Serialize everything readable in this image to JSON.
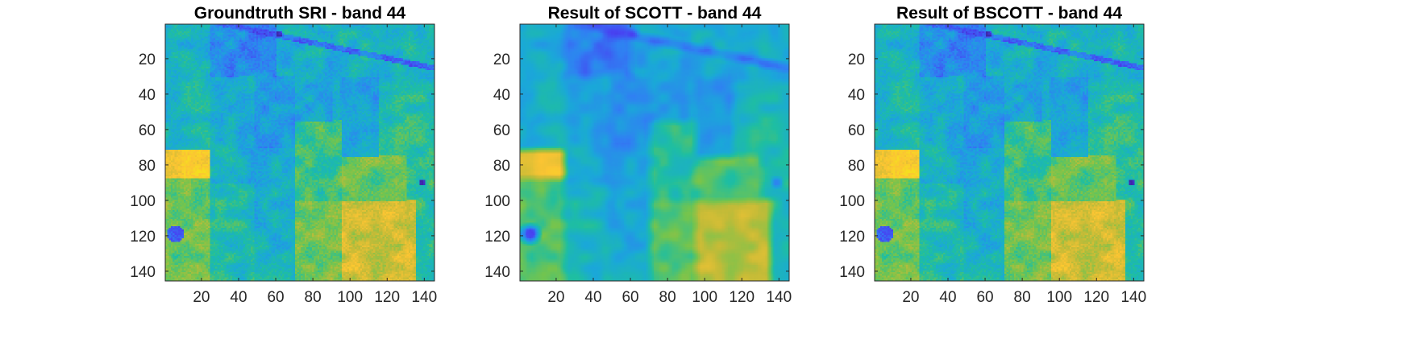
{
  "figure": {
    "colormap": [
      "#3e26a8",
      "#4743f2",
      "#2f81f2",
      "#1aa8d8",
      "#1ebea1",
      "#73c44e",
      "#c3bb37",
      "#fbc433",
      "#f5e21d"
    ]
  },
  "chart_data": [
    {
      "type": "heatmap",
      "title": "Groundtruth SRI - band 44",
      "xlabel": "",
      "ylabel": "",
      "xlim": [
        0.5,
        145.5
      ],
      "ylim": [
        0.5,
        145.5
      ],
      "y_direction": "reversed (top = 1)",
      "xticks": [
        20,
        40,
        60,
        80,
        100,
        120,
        140
      ],
      "yticks": [
        20,
        40,
        60,
        80,
        100,
        120,
        140
      ],
      "grid": false,
      "box": true,
      "description_of_values": "Indian Pines hyperspectral band 44 reflectance; mostly cyan/teal background with rectangular agricultural fields; bright yellow block at rows ~72-87 cols 1-24; yellow-green region lower-right rows ~100-145 cols ~80-135; dark blue spots near (row 120, col 5) and (row 90, col 138); diagonal dark line from top around cols 30-145 rows 1-30"
    },
    {
      "type": "heatmap",
      "title": "Result of SCOTT - band 44",
      "xlabel": "",
      "ylabel": "",
      "xlim": [
        0.5,
        145.5
      ],
      "ylim": [
        0.5,
        145.5
      ],
      "y_direction": "reversed (top = 1)",
      "xticks": [
        20,
        40,
        60,
        80,
        100,
        120,
        140
      ],
      "yticks": [
        20,
        40,
        60,
        80,
        100,
        120,
        140
      ],
      "grid": false,
      "box": true,
      "description_of_values": "Smoothed reconstruction of the same band; same field layout with blurrier edges and slightly more blue in upper half"
    },
    {
      "type": "heatmap",
      "title": "Result of BSCOTT - band 44",
      "xlabel": "",
      "ylabel": "",
      "xlim": [
        0.5,
        145.5
      ],
      "ylim": [
        0.5,
        145.5
      ],
      "y_direction": "reversed (top = 1)",
      "xticks": [
        20,
        40,
        60,
        80,
        100,
        120,
        140
      ],
      "yticks": [
        20,
        40,
        60,
        80,
        100,
        120,
        140
      ],
      "grid": false,
      "box": true,
      "description_of_values": "Reconstruction closely matching the groundtruth with sharp field boundaries"
    }
  ]
}
